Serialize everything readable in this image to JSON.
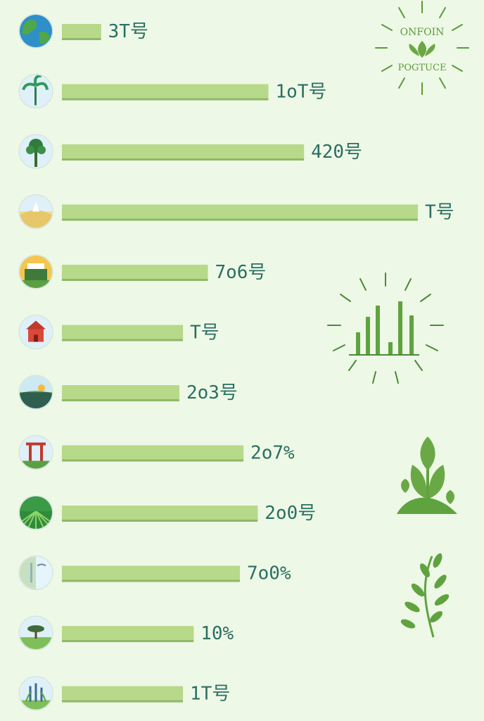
{
  "colors": {
    "background": "#eef8e6",
    "bar": "#b7d98a",
    "label": "#2a6f63",
    "accent": "#5a9a3a"
  },
  "badge": {
    "line1": "ONFOIN",
    "line2": "POGTUCE"
  },
  "chart_data": {
    "type": "bar",
    "orientation": "horizontal",
    "grid": false,
    "legend": "none",
    "xlim": [
      0,
      100
    ],
    "rows": [
      {
        "icon": "globe-icon",
        "label": "3T号",
        "value": 11
      },
      {
        "icon": "palm-tree-icon",
        "label": "1oT号",
        "value": 58
      },
      {
        "icon": "rainforest-tree-icon",
        "label": "420号",
        "value": 68
      },
      {
        "icon": "desert-dune-icon",
        "label": "T号",
        "value": 100
      },
      {
        "icon": "building-icon",
        "label": "7o6号",
        "value": 41
      },
      {
        "icon": "temple-icon",
        "label": "T号",
        "value": 34
      },
      {
        "icon": "landscape-icon",
        "label": "2o3号",
        "value": 33
      },
      {
        "icon": "gate-icon",
        "label": "2o7%",
        "value": 51
      },
      {
        "icon": "field-rows-icon",
        "label": "2o0号",
        "value": 55
      },
      {
        "icon": "glacier-icon",
        "label": "7o0%",
        "value": 50
      },
      {
        "icon": "savanna-tree-icon",
        "label": "10%",
        "value": 37
      },
      {
        "icon": "wetland-plants-icon",
        "label": "1T号",
        "value": 34
      }
    ]
  }
}
